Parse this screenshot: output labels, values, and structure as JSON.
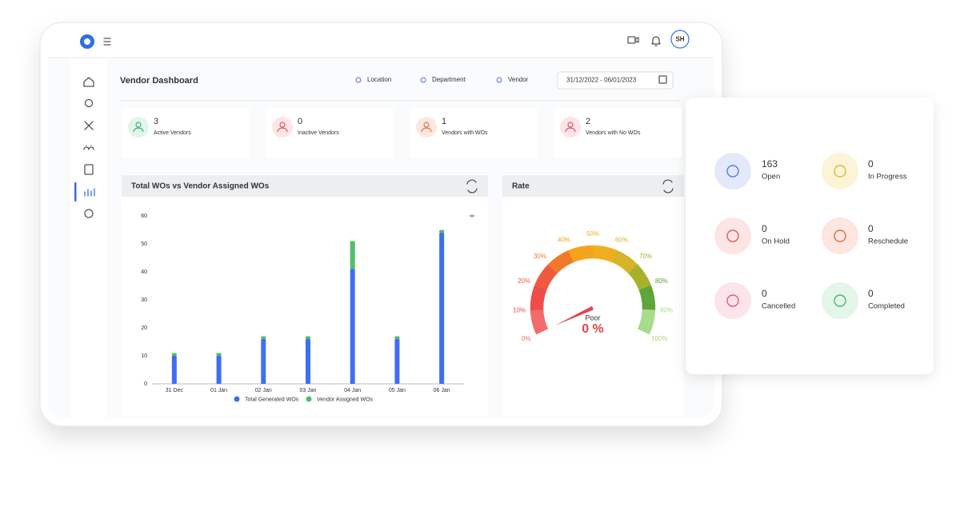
{
  "app": {
    "avatar": "SH"
  },
  "page": {
    "title": "Vendor Dashboard",
    "filters": [
      "Location",
      "Department",
      "Vendor"
    ],
    "date_range": "31/12/2022 - 06/01/2023"
  },
  "stats": [
    {
      "value": 3,
      "label": "Active Vendors"
    },
    {
      "value": 0,
      "label": "Inactive Vendors"
    },
    {
      "value": 1,
      "label": "Vendors with WOs"
    },
    {
      "value": 2,
      "label": "Vendors with No WOs"
    }
  ],
  "chart_data": [
    {
      "type": "bar",
      "stacked": true,
      "title": "Total WOs vs Vendor Assigned WOs",
      "categories": [
        "31 Dec",
        "01 Jan",
        "02 Jan",
        "03 Jan",
        "04 Jan",
        "05 Jan",
        "06 Jan"
      ],
      "series": [
        {
          "name": "Total Generated WOs",
          "color": "#3d6ef5",
          "values": [
            10,
            10,
            16,
            16,
            41,
            16,
            54
          ]
        },
        {
          "name": "Vendor Assigned WOs",
          "color": "#4cbf6b",
          "values": [
            1,
            1,
            1,
            1,
            10,
            1,
            1
          ]
        }
      ],
      "ylim": [
        0,
        60
      ],
      "yticks": [
        0,
        10,
        20,
        30,
        40,
        50,
        60
      ],
      "legend": "bottom"
    },
    {
      "type": "gauge",
      "title": "Rate",
      "value": 0,
      "value_label": "0 %",
      "annotation": "Poor",
      "ylim": [
        0,
        100
      ],
      "yticks": [
        {
          "value": 0,
          "label": "0%"
        },
        {
          "value": 10,
          "label": "10%"
        },
        {
          "value": 20,
          "label": "20%"
        },
        {
          "value": 30,
          "label": "30%"
        },
        {
          "value": 40,
          "label": "40%"
        },
        {
          "value": 50,
          "label": "50%"
        },
        {
          "value": 60,
          "label": "60%"
        },
        {
          "value": 70,
          "label": "70%"
        },
        {
          "value": 80,
          "label": "80%"
        },
        {
          "value": 90,
          "label": "90%"
        },
        {
          "value": 100,
          "label": "100%"
        }
      ],
      "colors": [
        "#f26b6b",
        "#ef4b4b",
        "#ee5a3e",
        "#f07a2a",
        "#f5a21c",
        "#f2ad1f",
        "#d6b42a",
        "#a7b22c",
        "#5ea53a",
        "#a6dc8c"
      ]
    }
  ],
  "status": [
    {
      "value": 163,
      "label": "Open"
    },
    {
      "value": 0,
      "label": "In Progress"
    },
    {
      "value": 0,
      "label": "On Hold"
    },
    {
      "value": 0,
      "label": "Reschedule"
    },
    {
      "value": 0,
      "label": "Cancelled"
    },
    {
      "value": 0,
      "label": "Completed"
    }
  ]
}
